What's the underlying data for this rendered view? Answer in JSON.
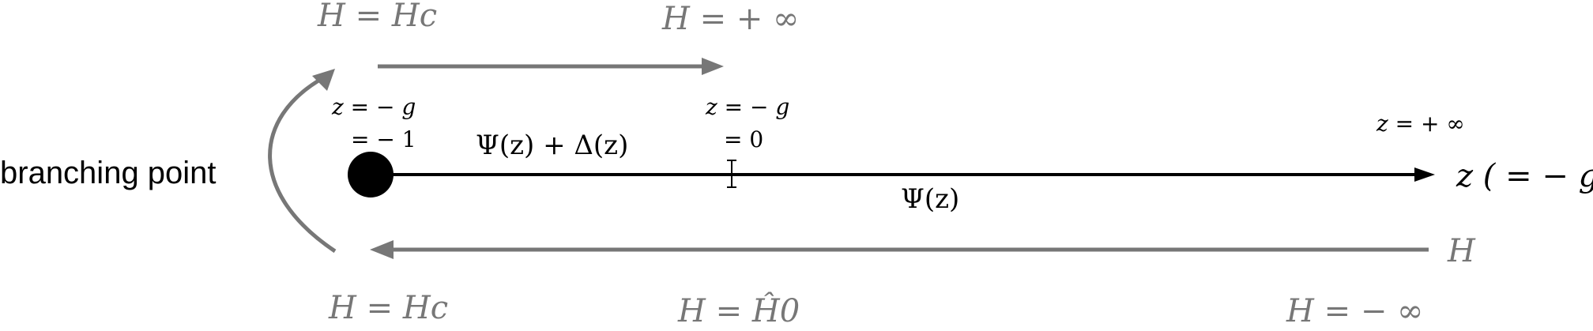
{
  "labels": {
    "branching_point": "branching point",
    "h_eq_hc_top": "H = Hc",
    "h_eq_plus_inf": "H = + ∞",
    "z_eq_minus_g_left": "z = − g",
    "eq_minus_1": "= − 1",
    "psi_plus_delta": "Ψ(z) + Δ(z)",
    "z_eq_minus_g_mid": "z = − g",
    "eq_0": "= 0",
    "psi": "Ψ(z)",
    "z_eq_plus_inf": "z = + ∞",
    "z_axis": "z ( = − g)",
    "h_right": "H",
    "h_eq_hc_bottom": "H = Hc",
    "h_eq_h0hat": "H = Ĥ0",
    "h_eq_minus_inf": "H = − ∞"
  },
  "colors": {
    "main_line": "#000000",
    "flow_arrows": "#777777",
    "text_gray": "#777777",
    "text_black": "#000000"
  }
}
